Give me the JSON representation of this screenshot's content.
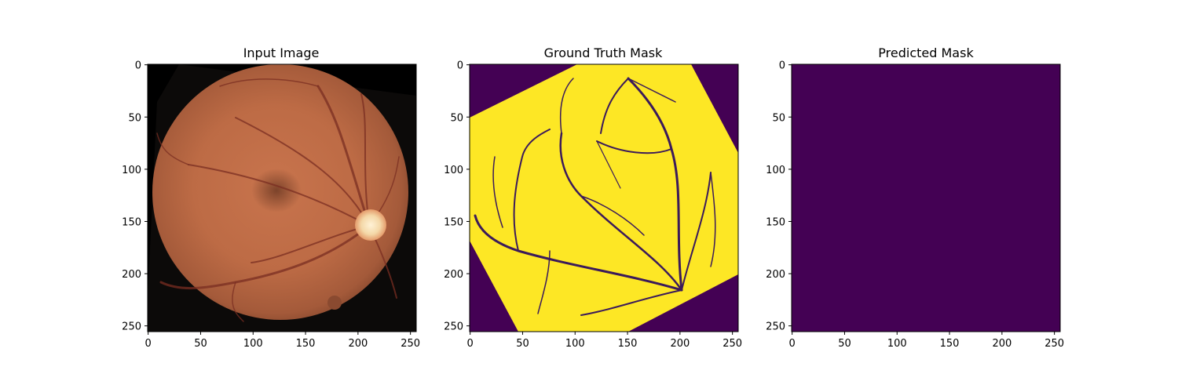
{
  "panels": [
    {
      "title": "Input Image",
      "content": "fundus-photograph",
      "x_ticks": [
        "0",
        "50",
        "100",
        "150",
        "200",
        "250"
      ],
      "y_ticks": [
        "0",
        "50",
        "100",
        "150",
        "200",
        "250"
      ]
    },
    {
      "title": "Ground Truth Mask",
      "content": "vessel-mask",
      "x_ticks": [
        "0",
        "50",
        "100",
        "150",
        "200",
        "250"
      ],
      "y_ticks": [
        "0",
        "50",
        "100",
        "150",
        "200",
        "250"
      ]
    },
    {
      "title": "Predicted Mask",
      "content": "empty-mask",
      "x_ticks": [
        "0",
        "50",
        "100",
        "150",
        "200",
        "250"
      ],
      "y_ticks": [
        "0",
        "50",
        "100",
        "150",
        "200",
        "250"
      ]
    }
  ],
  "image_size": [
    256,
    256
  ],
  "colors": {
    "background_black": "#000000",
    "mask_low": "#440154",
    "mask_high": "#fde725",
    "vessel_edge": "#21918c",
    "fundus": "#c46a45",
    "optic_disc": "#f4d8a8"
  }
}
